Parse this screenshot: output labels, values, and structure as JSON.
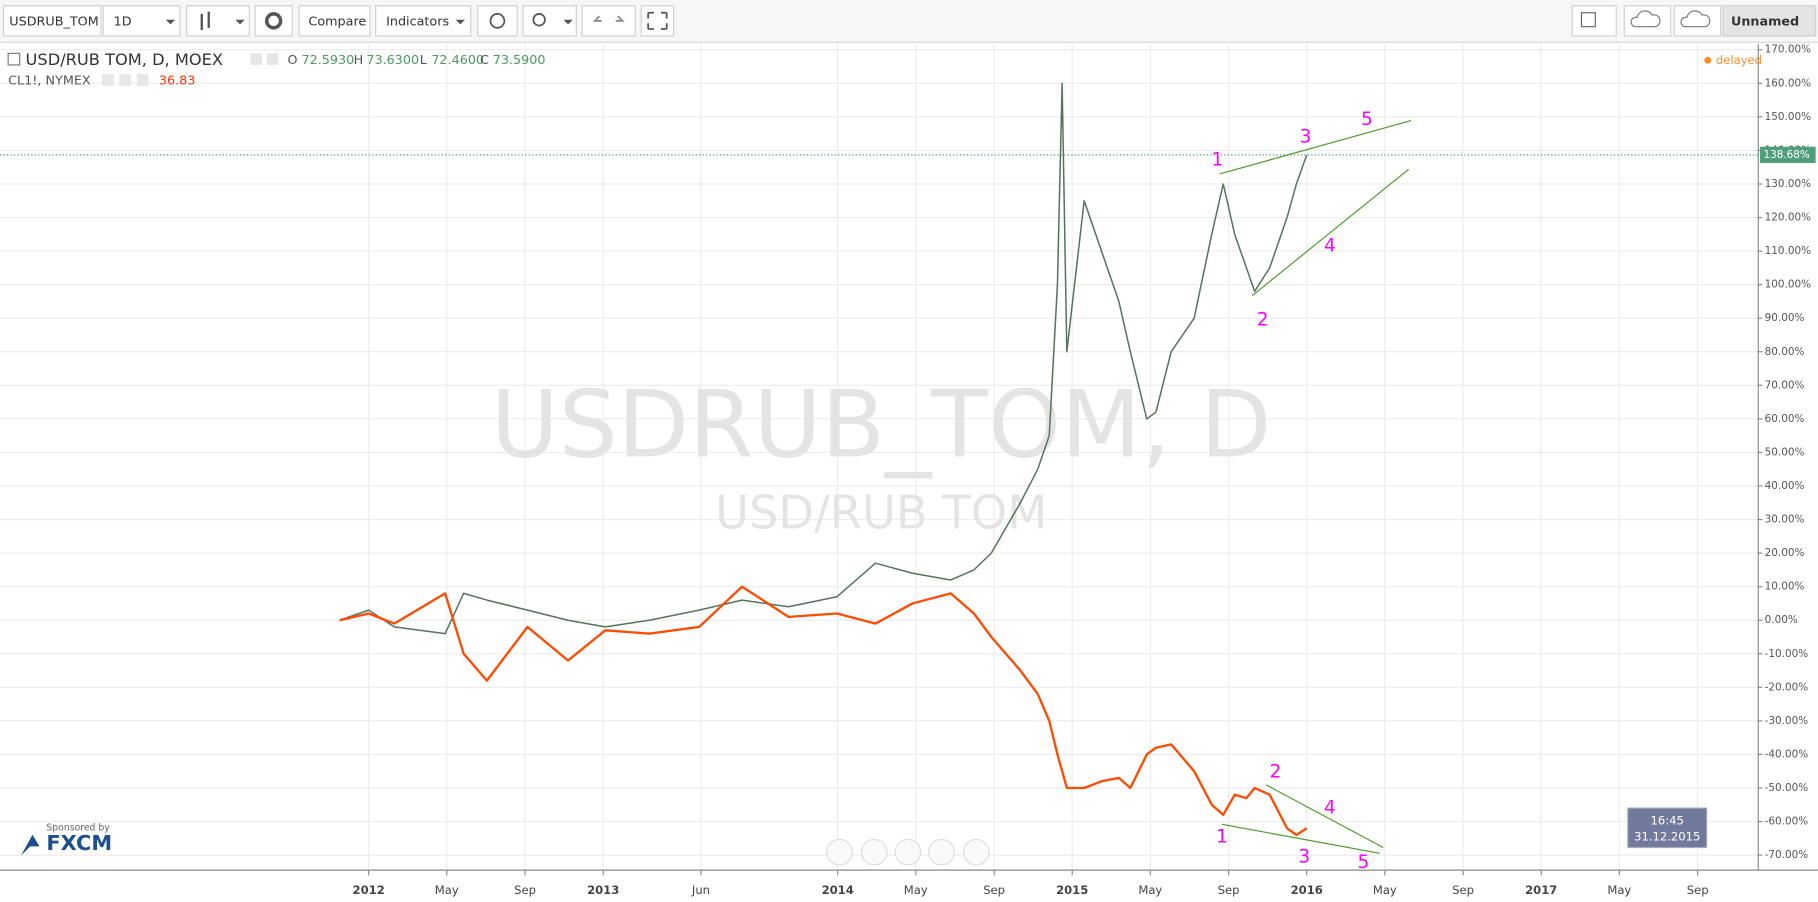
{
  "toolbar": {
    "symbol": "USDRUB_TOM",
    "interval": "1D",
    "compare": "Compare",
    "indicators": "Indicators",
    "layout_name": "Unnamed"
  },
  "legend": {
    "main": "USD/RUB TOM, D, MOEX",
    "o_label": "O",
    "open": "72.5930",
    "h_label": "H",
    "high": "73.6300",
    "l_label": "L",
    "low": "72.4600",
    "c_label": "C",
    "close": "73.5900",
    "compare_symbol": "CL1!, NYMEX",
    "compare_value": "36.83",
    "status": "delayed"
  },
  "watermark": {
    "symbol": "USDRUB_TOM, D",
    "description": "USD/RUB TOM"
  },
  "sponsor": {
    "caption": "Sponsored by",
    "brand": "FXCM"
  },
  "clock": {
    "time": "16:45",
    "date": "31.12.2015"
  },
  "chart_data": {
    "type": "line",
    "x": [
      2011.876,
      2012.0,
      2012.109,
      2012.326,
      2012.405,
      2012.504,
      2012.677,
      2012.85,
      2013.009,
      2013.197,
      2013.409,
      2013.592,
      2013.79,
      2013.997,
      2014.161,
      2014.319,
      2014.482,
      2014.581,
      2014.655,
      2014.779,
      2014.853,
      2014.902,
      2014.937,
      2014.957,
      2014.977,
      2015.051,
      2015.125,
      2015.199,
      2015.248,
      2015.318,
      2015.357,
      2015.422,
      2015.52,
      2015.595,
      2015.644,
      2015.693,
      2015.743,
      2015.778,
      2015.842,
      2015.916,
      2015.956,
      2016.0
    ],
    "series": [
      {
        "name": "USD/RUB TOM",
        "color": "#56735f",
        "values": [
          0,
          3,
          -2,
          -4,
          8,
          6,
          3,
          0,
          -2,
          0,
          3,
          6,
          4,
          7,
          17,
          14,
          12,
          15,
          20,
          35,
          45,
          55,
          100,
          160,
          80,
          125,
          110,
          95,
          80,
          60,
          62,
          80,
          90,
          115,
          130,
          115,
          105,
          98,
          105,
          120,
          130,
          138.68
        ]
      },
      {
        "name": "CL1!",
        "color": "#ff4a00",
        "values": [
          0,
          2,
          -1,
          8,
          -10,
          -18,
          -2,
          -12,
          -3,
          -4,
          -2,
          10,
          1,
          2,
          -1,
          5,
          8,
          2,
          -5,
          -15,
          -22,
          -30,
          -40,
          -45,
          -50,
          -50,
          -48,
          -47,
          -50,
          -40,
          -38,
          -37,
          -45,
          -55,
          -58,
          -52,
          -53,
          -50,
          -52,
          -62,
          -64,
          -62
        ]
      }
    ],
    "last_value": {
      "value": 138.68,
      "label": "138.68%"
    },
    "xlim": [
      2010.428,
      2017.923
    ],
    "xticks": [
      {
        "value": 2012.0,
        "label": "2012"
      },
      {
        "value": 2012.333,
        "label": "May"
      },
      {
        "value": 2012.667,
        "label": "Sep"
      },
      {
        "value": 2013.0,
        "label": "2013"
      },
      {
        "value": 2013.417,
        "label": "Jun"
      },
      {
        "value": 2014.0,
        "label": "2014"
      },
      {
        "value": 2014.333,
        "label": "May"
      },
      {
        "value": 2014.667,
        "label": "Sep"
      },
      {
        "value": 2015.0,
        "label": "2015"
      },
      {
        "value": 2015.333,
        "label": "May"
      },
      {
        "value": 2015.667,
        "label": "Sep"
      },
      {
        "value": 2016.0,
        "label": "2016"
      },
      {
        "value": 2016.333,
        "label": "May"
      },
      {
        "value": 2016.667,
        "label": "Sep"
      },
      {
        "value": 2017.0,
        "label": "2017"
      },
      {
        "value": 2017.333,
        "label": "May"
      },
      {
        "value": 2017.667,
        "label": "Sep"
      }
    ],
    "ylim": [
      -74.3,
      171.7
    ],
    "yticks": [
      {
        "value": -70,
        "label": "-70.00%"
      },
      {
        "value": -60,
        "label": "-60.00%"
      },
      {
        "value": -50,
        "label": "-50.00%"
      },
      {
        "value": -40,
        "label": "-40.00%"
      },
      {
        "value": -30,
        "label": "-30.00%"
      },
      {
        "value": -20,
        "label": "-20.00%"
      },
      {
        "value": -10,
        "label": "-10.00%"
      },
      {
        "value": 0,
        "label": "0.00%"
      },
      {
        "value": 10,
        "label": "10.00%"
      },
      {
        "value": 20,
        "label": "20.00%"
      },
      {
        "value": 30,
        "label": "30.00%"
      },
      {
        "value": 40,
        "label": "40.00%"
      },
      {
        "value": 50,
        "label": "50.00%"
      },
      {
        "value": 60,
        "label": "60.00%"
      },
      {
        "value": 70,
        "label": "70.00%"
      },
      {
        "value": 80,
        "label": "80.00%"
      },
      {
        "value": 90,
        "label": "90.00%"
      },
      {
        "value": 100,
        "label": "100.00%"
      },
      {
        "value": 110,
        "label": "110.00%"
      },
      {
        "value": 120,
        "label": "120.00%"
      },
      {
        "value": 130,
        "label": "130.00%"
      },
      {
        "value": 140,
        "label": "140.00%"
      },
      {
        "value": 150,
        "label": "150.00%"
      },
      {
        "value": 160,
        "label": "160.00%"
      },
      {
        "value": 170,
        "label": "170.00%"
      }
    ],
    "grid": true,
    "wave_labels": [
      "1",
      "2",
      "3",
      "4",
      "5"
    ],
    "wave_color": "#ff00ff",
    "trend_color": "#4a9a2a"
  }
}
